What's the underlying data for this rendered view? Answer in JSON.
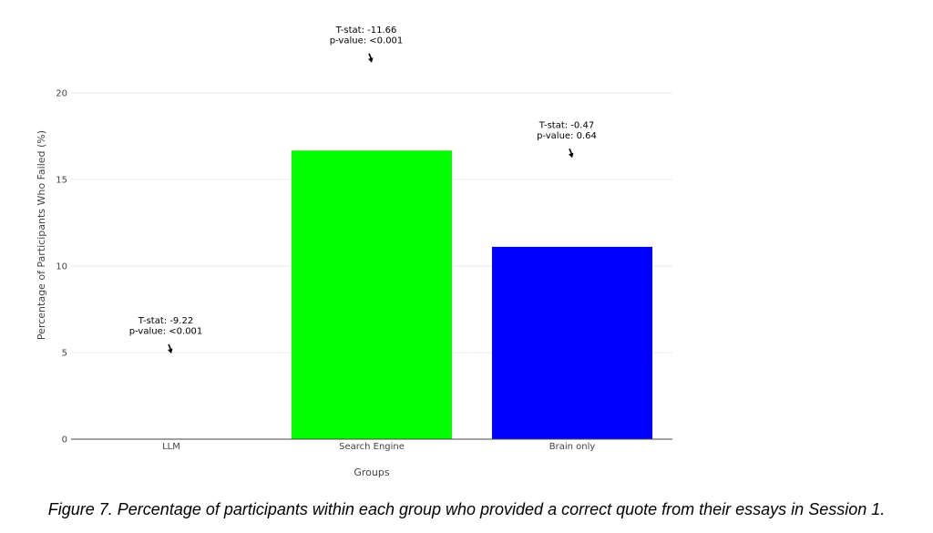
{
  "chart_data": {
    "type": "bar",
    "categories": [
      "LLM",
      "Search Engine",
      "Brain only"
    ],
    "values": [
      0,
      16.67,
      11.11
    ],
    "colors": [
      "#00ff00",
      "#00ff00",
      "#0000ff"
    ],
    "xlabel": "Groups",
    "ylabel": "Percentage of Participants Who Failed (%)",
    "ylim": [
      0,
      21
    ],
    "yticks": [
      0,
      5,
      10,
      15,
      20
    ],
    "grid": true,
    "annotations": [
      {
        "category": "LLM",
        "value": 4.95,
        "lines": [
          "T-stat: -9.22",
          "p-value: <0.001"
        ]
      },
      {
        "category": "Search Engine",
        "value": 21.75,
        "lines": [
          "T-stat: -11.66",
          "p-value: <0.001"
        ]
      },
      {
        "category": "Brain only",
        "value": 16.25,
        "lines": [
          "T-stat: -0.47",
          "p-value: 0.64"
        ]
      }
    ]
  },
  "caption": "Figure 7. Percentage of participants within each group who provided a correct quote from their essays in Session 1."
}
